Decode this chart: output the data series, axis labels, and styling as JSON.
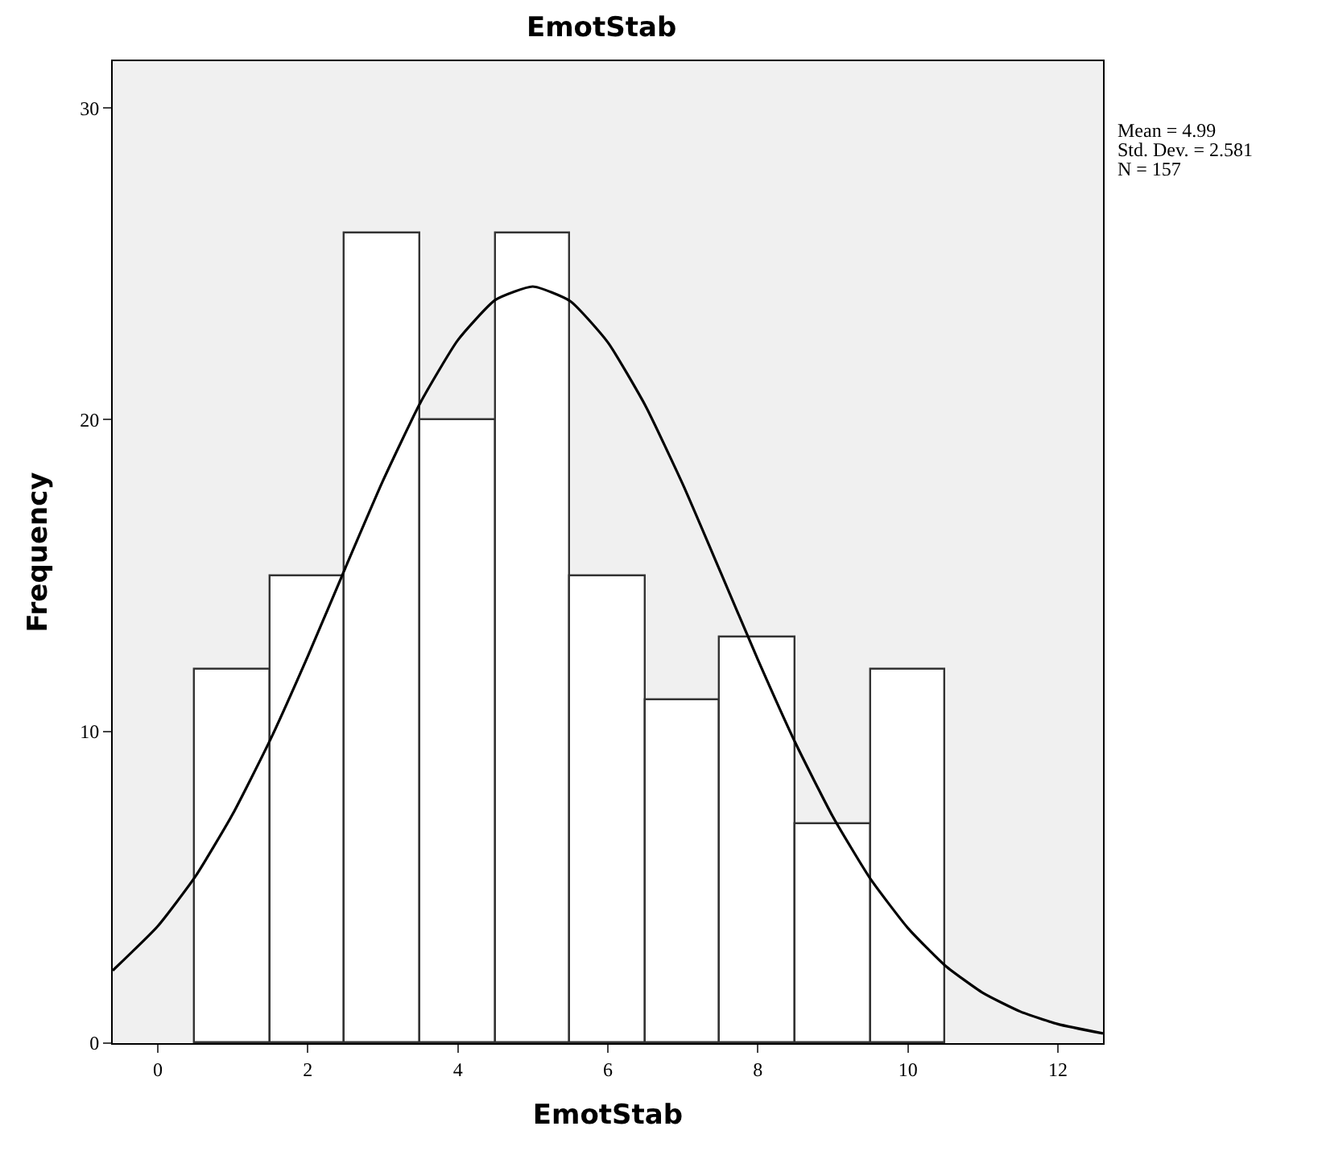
{
  "chart_data": {
    "type": "histogram",
    "title": "EmotStab",
    "xlabel": "EmotStab",
    "ylabel": "Frequency",
    "bins": [
      0.5,
      1.5,
      2.5,
      3.5,
      4.5,
      5.5,
      6.5,
      7.5,
      8.5,
      9.5,
      10.5
    ],
    "values": [
      12,
      15,
      26,
      20,
      26,
      15,
      11,
      13,
      7,
      12
    ],
    "color": "#ffffff",
    "series": [
      {
        "type": "line",
        "color": "#000000",
        "x": [
          -0.6,
          0,
          0.5,
          1,
          1.5,
          2,
          2.5,
          3,
          3.5,
          4,
          4.5,
          5,
          5.5,
          6,
          6.5,
          7,
          7.5,
          8,
          8.5,
          9,
          9.5,
          10,
          10.5,
          11,
          11.5,
          12,
          12.6
        ],
        "values": [
          2.33,
          3.75,
          5.34,
          7.35,
          9.73,
          12.41,
          15.24,
          18.03,
          20.54,
          22.55,
          23.84,
          24.27,
          23.8,
          22.48,
          20.45,
          17.92,
          15.12,
          12.3,
          9.63,
          7.26,
          5.27,
          3.69,
          2.48,
          1.61,
          1.01,
          0.61,
          0.31
        ]
      }
    ],
    "xlim": [
      -0.6,
      12.6
    ],
    "ylim": [
      0,
      31.5
    ],
    "xticks": [
      0,
      2,
      4,
      6,
      8,
      10,
      12
    ],
    "yticks": [
      0,
      10,
      20,
      30
    ],
    "grid": false,
    "marker": "none",
    "line_style": "solid",
    "annotations": [
      "Mean = 4.99",
      "Std. Dev. = 2.581",
      "N = 157"
    ]
  }
}
